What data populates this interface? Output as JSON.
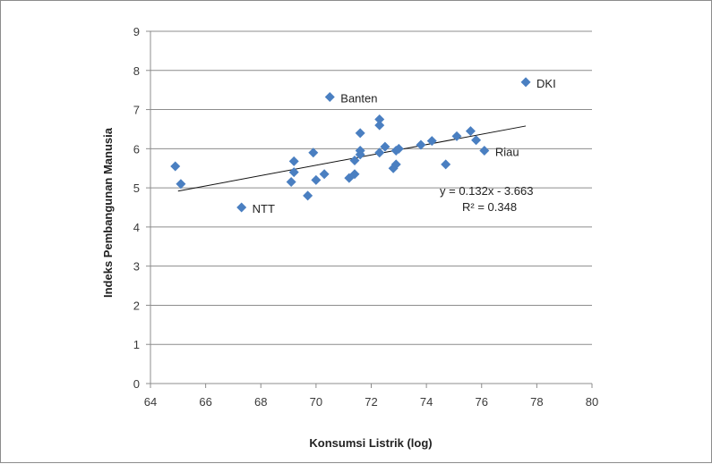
{
  "chart_data": {
    "type": "scatter",
    "xlabel": "Konsumsi Listrik (log)",
    "ylabel": "Indeks Pembangunan Manusia",
    "xlim": [
      64,
      80
    ],
    "ylim": [
      0,
      9
    ],
    "x_ticks": [
      "64",
      "66",
      "68",
      "70",
      "72",
      "74",
      "76",
      "78",
      "80"
    ],
    "y_ticks": [
      "0",
      "1",
      "2",
      "3",
      "4",
      "5",
      "6",
      "7",
      "8",
      "9"
    ],
    "grid": "horizontal",
    "marker_color": "#4a7fc1",
    "points": [
      {
        "x": 64.9,
        "y": 5.55
      },
      {
        "x": 65.1,
        "y": 5.1
      },
      {
        "x": 67.3,
        "y": 4.5,
        "label": "NTT"
      },
      {
        "x": 69.1,
        "y": 5.15
      },
      {
        "x": 69.2,
        "y": 5.4
      },
      {
        "x": 69.2,
        "y": 5.68
      },
      {
        "x": 69.7,
        "y": 4.8
      },
      {
        "x": 69.9,
        "y": 5.9
      },
      {
        "x": 70.0,
        "y": 5.2
      },
      {
        "x": 70.3,
        "y": 5.35
      },
      {
        "x": 70.5,
        "y": 7.32,
        "label": "Banten"
      },
      {
        "x": 71.2,
        "y": 5.25
      },
      {
        "x": 71.4,
        "y": 5.35
      },
      {
        "x": 71.4,
        "y": 5.7
      },
      {
        "x": 71.6,
        "y": 5.85
      },
      {
        "x": 71.6,
        "y": 5.95
      },
      {
        "x": 71.6,
        "y": 6.4
      },
      {
        "x": 72.3,
        "y": 5.9
      },
      {
        "x": 72.3,
        "y": 6.6
      },
      {
        "x": 72.3,
        "y": 6.75
      },
      {
        "x": 72.5,
        "y": 6.05
      },
      {
        "x": 72.8,
        "y": 5.5
      },
      {
        "x": 72.9,
        "y": 5.6
      },
      {
        "x": 72.9,
        "y": 5.95
      },
      {
        "x": 73.0,
        "y": 6.0
      },
      {
        "x": 73.8,
        "y": 6.1
      },
      {
        "x": 74.2,
        "y": 6.2
      },
      {
        "x": 74.7,
        "y": 5.6
      },
      {
        "x": 75.1,
        "y": 6.32
      },
      {
        "x": 75.6,
        "y": 6.45
      },
      {
        "x": 75.8,
        "y": 6.22
      },
      {
        "x": 76.1,
        "y": 5.95,
        "label": "Riau"
      },
      {
        "x": 77.6,
        "y": 7.7,
        "label": "DKI"
      }
    ],
    "trendline": {
      "slope": 0.132,
      "intercept": -3.663,
      "x_start": 65.0,
      "x_end": 77.6,
      "equation_label": "y = 0.132x - 3.663",
      "r2_label": "R² = 0.348"
    }
  }
}
